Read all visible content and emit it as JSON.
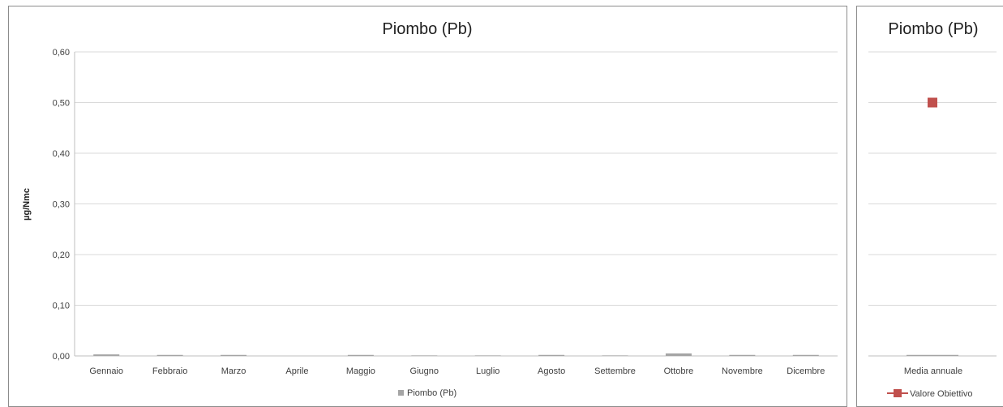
{
  "chart_data": [
    {
      "type": "bar",
      "title": "Piombo (Pb)",
      "ylabel": "µg/Nmc",
      "xlabel": "",
      "ylim": [
        0,
        0.6
      ],
      "yticks": [
        "0,00",
        "0,10",
        "0,20",
        "0,30",
        "0,40",
        "0,50",
        "0,60"
      ],
      "ytick_values": [
        0,
        0.1,
        0.2,
        0.3,
        0.4,
        0.5,
        0.6
      ],
      "grid": true,
      "legend_position": "bottom",
      "categories": [
        "Gennaio",
        "Febbraio",
        "Marzo",
        "Aprile",
        "Maggio",
        "Giugno",
        "Luglio",
        "Agosto",
        "Settembre",
        "Ottobre",
        "Novembre",
        "Dicembre"
      ],
      "series": [
        {
          "name": "Piombo (Pb)",
          "color": "#a5a5a5",
          "values": [
            0.003,
            0.002,
            0.002,
            0.0,
            0.002,
            0.001,
            0.001,
            0.002,
            0.001,
            0.005,
            0.002,
            0.002
          ]
        }
      ]
    },
    {
      "type": "bar",
      "title": "Piombo (Pb)",
      "ylim": [
        0,
        0.6
      ],
      "grid": true,
      "legend_position": "bottom",
      "categories": [
        "Media annuale"
      ],
      "series": [
        {
          "name": "",
          "color": "#a5a5a5",
          "values": [
            0.002
          ]
        },
        {
          "name": "Valore Obiettivo",
          "type": "line-marker",
          "marker": "square",
          "color": "#c0504d",
          "values": [
            0.5
          ]
        }
      ]
    }
  ]
}
